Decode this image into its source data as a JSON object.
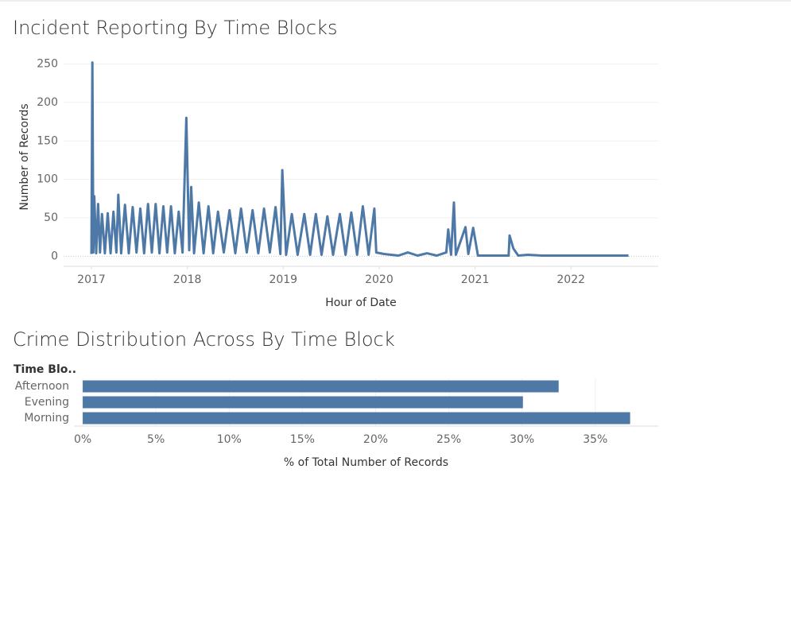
{
  "chart_data": [
    {
      "type": "line",
      "title": "Incident Reporting By Time Blocks",
      "x_label": "Hour of Date",
      "y_label": "Number of Records",
      "color": "#4e79a7",
      "grid": true,
      "x": [
        2017.0,
        2017.01,
        2017.02,
        2017.03,
        2017.05,
        2017.07,
        2017.09,
        2017.11,
        2017.14,
        2017.17,
        2017.2,
        2017.23,
        2017.26,
        2017.28,
        2017.31,
        2017.35,
        2017.39,
        2017.43,
        2017.47,
        2017.51,
        2017.55,
        2017.59,
        2017.63,
        2017.67,
        2017.71,
        2017.75,
        2017.79,
        2017.83,
        2017.87,
        2017.91,
        2017.95,
        2017.99,
        2018.02,
        2018.04,
        2018.07,
        2018.12,
        2018.17,
        2018.22,
        2018.27,
        2018.32,
        2018.38,
        2018.44,
        2018.5,
        2018.56,
        2018.62,
        2018.68,
        2018.74,
        2018.8,
        2018.86,
        2018.92,
        2018.97,
        2018.99,
        2019.03,
        2019.09,
        2019.15,
        2019.22,
        2019.28,
        2019.34,
        2019.4,
        2019.46,
        2019.52,
        2019.59,
        2019.65,
        2019.71,
        2019.77,
        2019.83,
        2019.89,
        2019.95,
        2019.97,
        2020.05,
        2020.2,
        2020.3,
        2020.4,
        2020.5,
        2020.6,
        2020.7,
        2020.72,
        2020.75,
        2020.78,
        2020.8,
        2020.9,
        2020.93,
        2020.98,
        2021.03,
        2021.2,
        2021.35,
        2021.36,
        2021.4,
        2021.45,
        2021.55,
        2021.7,
        2022.6
      ],
      "values": [
        3,
        252,
        5,
        78,
        4,
        68,
        5,
        55,
        4,
        56,
        4,
        58,
        5,
        80,
        4,
        67,
        4,
        64,
        5,
        62,
        4,
        68,
        5,
        68,
        4,
        65,
        5,
        65,
        4,
        58,
        5,
        180,
        8,
        90,
        4,
        70,
        4,
        65,
        4,
        58,
        5,
        60,
        4,
        62,
        5,
        60,
        4,
        62,
        5,
        64,
        3,
        112,
        2,
        55,
        2,
        55,
        2,
        55,
        2,
        52,
        2,
        55,
        2,
        57,
        2,
        65,
        2,
        62,
        5,
        3,
        1,
        5,
        1,
        4,
        1,
        5,
        35,
        2,
        70,
        2,
        38,
        3,
        37,
        1,
        1,
        1,
        27,
        10,
        1,
        2,
        1,
        1
      ],
      "xlim": [
        2016.71,
        2022.91
      ],
      "xticks": [
        2017,
        2018,
        2019,
        2020,
        2021,
        2022
      ],
      "ylim": [
        -13,
        265
      ],
      "yticks": [
        0,
        50,
        100,
        150,
        200,
        250
      ]
    },
    {
      "type": "bar",
      "orientation": "horizontal",
      "title": "Crime Distribution Across By Time Block",
      "y_label": "Time Blo..",
      "x_label": "% of Total Number of Records",
      "color": "#4e79a7",
      "grid": true,
      "categories": [
        "Afternoon",
        "Evening",
        "Morning"
      ],
      "values": [
        32.5,
        30.06,
        37.38
      ],
      "xlim": [
        -0.6,
        39.3
      ],
      "xticks": [
        {
          "value": 0,
          "label": "0%"
        },
        {
          "value": 5,
          "label": "5%"
        },
        {
          "value": 10,
          "label": "10%"
        },
        {
          "value": 15,
          "label": "15%"
        },
        {
          "value": 20,
          "label": "20%"
        },
        {
          "value": 25,
          "label": "25%"
        },
        {
          "value": 30,
          "label": "30%"
        },
        {
          "value": 35,
          "label": "35%"
        }
      ]
    }
  ]
}
